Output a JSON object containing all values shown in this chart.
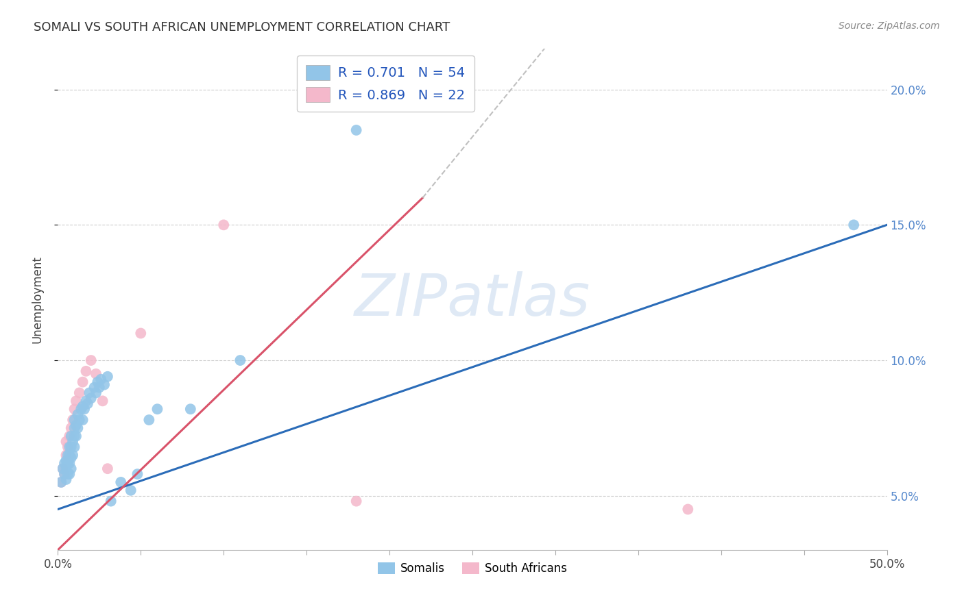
{
  "title": "SOMALI VS SOUTH AFRICAN UNEMPLOYMENT CORRELATION CHART",
  "source": "Source: ZipAtlas.com",
  "ylabel": "Unemployment",
  "yticks": [
    0.05,
    0.1,
    0.15,
    0.2
  ],
  "ytick_labels": [
    "5.0%",
    "10.0%",
    "15.0%",
    "20.0%"
  ],
  "xlim": [
    0.0,
    0.5
  ],
  "ylim": [
    0.03,
    0.215
  ],
  "watermark": "ZIPatlas",
  "legend_r1": "R = 0.701",
  "legend_n1": "N = 54",
  "legend_r2": "R = 0.869",
  "legend_n2": "N = 22",
  "somali_color": "#92c5e8",
  "south_african_color": "#f4b8cb",
  "somali_line_color": "#2b6cb8",
  "south_african_line_color": "#d9536a",
  "background_color": "#ffffff",
  "grid_color": "#cccccc",
  "somali_x": [
    0.002,
    0.003,
    0.004,
    0.004,
    0.005,
    0.005,
    0.005,
    0.006,
    0.006,
    0.006,
    0.007,
    0.007,
    0.007,
    0.007,
    0.008,
    0.008,
    0.008,
    0.008,
    0.009,
    0.009,
    0.01,
    0.01,
    0.01,
    0.01,
    0.011,
    0.011,
    0.012,
    0.012,
    0.013,
    0.014,
    0.015,
    0.015,
    0.016,
    0.017,
    0.018,
    0.019,
    0.02,
    0.022,
    0.023,
    0.024,
    0.025,
    0.026,
    0.028,
    0.03,
    0.032,
    0.038,
    0.044,
    0.048,
    0.055,
    0.06,
    0.08,
    0.11,
    0.18,
    0.48
  ],
  "somali_y": [
    0.055,
    0.06,
    0.058,
    0.062,
    0.056,
    0.06,
    0.063,
    0.058,
    0.062,
    0.065,
    0.058,
    0.062,
    0.065,
    0.068,
    0.06,
    0.064,
    0.068,
    0.072,
    0.065,
    0.07,
    0.068,
    0.072,
    0.075,
    0.078,
    0.072,
    0.076,
    0.075,
    0.08,
    0.078,
    0.082,
    0.078,
    0.083,
    0.082,
    0.085,
    0.084,
    0.088,
    0.086,
    0.09,
    0.088,
    0.092,
    0.09,
    0.093,
    0.091,
    0.094,
    0.048,
    0.055,
    0.052,
    0.058,
    0.078,
    0.082,
    0.082,
    0.1,
    0.185,
    0.15
  ],
  "south_african_x": [
    0.002,
    0.003,
    0.004,
    0.005,
    0.005,
    0.006,
    0.007,
    0.008,
    0.009,
    0.01,
    0.011,
    0.013,
    0.015,
    0.017,
    0.02,
    0.023,
    0.027,
    0.03,
    0.05,
    0.1,
    0.18,
    0.38
  ],
  "south_african_y": [
    0.055,
    0.06,
    0.058,
    0.065,
    0.07,
    0.068,
    0.072,
    0.075,
    0.078,
    0.082,
    0.085,
    0.088,
    0.092,
    0.096,
    0.1,
    0.095,
    0.085,
    0.06,
    0.11,
    0.15,
    0.048,
    0.045
  ]
}
